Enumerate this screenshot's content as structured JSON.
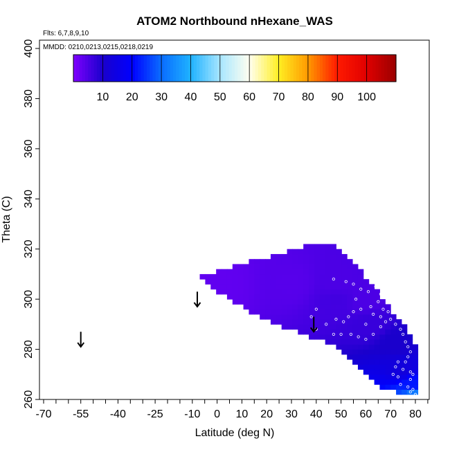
{
  "chart_data": {
    "type": "heatmap",
    "title": "ATOM2 Northbound nHexane_WAS",
    "flights_note": "Flts: 6,7,8,9,10",
    "dates_note": "MMDD: 0210,0213,0215,0218,0219",
    "xlabel": "Latitude (deg N)",
    "ylabel": "Theta (C)",
    "xlim": [
      -70,
      85
    ],
    "ylim": [
      260,
      400
    ],
    "x_ticks": [
      -70,
      -55,
      -40,
      -25,
      -10,
      0,
      10,
      20,
      30,
      40,
      50,
      60,
      70,
      80
    ],
    "y_ticks": [
      260,
      280,
      300,
      320,
      340,
      360,
      380,
      400
    ],
    "colorbar": {
      "range": [
        0,
        110
      ],
      "ticks": [
        10,
        20,
        30,
        40,
        50,
        60,
        70,
        80,
        90,
        100
      ],
      "stops": [
        {
          "value": 0,
          "color": "#7f00ff"
        },
        {
          "value": 10,
          "color": "#1a00cc"
        },
        {
          "value": 20,
          "color": "#0000ff"
        },
        {
          "value": 30,
          "color": "#0a6dff"
        },
        {
          "value": 40,
          "color": "#1fb2ff"
        },
        {
          "value": 50,
          "color": "#a8e6ff"
        },
        {
          "value": 60,
          "color": "#fffff0"
        },
        {
          "value": 70,
          "color": "#ffee22"
        },
        {
          "value": 80,
          "color": "#ff9900"
        },
        {
          "value": 90,
          "color": "#ff1a00"
        },
        {
          "value": 100,
          "color": "#e00000"
        },
        {
          "value": 110,
          "color": "#990000"
        }
      ]
    },
    "field_region": {
      "top_boundary": [
        [
          -7,
          309
        ],
        [
          10,
          314
        ],
        [
          25,
          318
        ],
        [
          38,
          322
        ],
        [
          48,
          322
        ],
        [
          52,
          317
        ],
        [
          57,
          312
        ],
        [
          62,
          307
        ],
        [
          66,
          302
        ],
        [
          70,
          296
        ],
        [
          74,
          291
        ],
        [
          78,
          286
        ],
        [
          80,
          282
        ],
        [
          81,
          278
        ],
        [
          81,
          263
        ]
      ],
      "bottom_boundary": [
        [
          -7,
          309
        ],
        [
          0,
          303
        ],
        [
          8,
          298
        ],
        [
          18,
          292
        ],
        [
          30,
          288
        ],
        [
          40,
          284
        ],
        [
          48,
          282
        ],
        [
          52,
          278
        ],
        [
          56,
          274
        ],
        [
          60,
          270
        ],
        [
          64,
          266
        ],
        [
          68,
          264
        ],
        [
          72,
          263
        ],
        [
          81,
          263
        ]
      ],
      "values": [
        {
          "lat": 0,
          "theta": 306,
          "v": 3
        },
        {
          "lat": 30,
          "theta": 306,
          "v": 4
        },
        {
          "lat": 48,
          "theta": 306,
          "v": 5
        },
        {
          "lat": 48,
          "theta": 300,
          "v": 6
        },
        {
          "lat": 60,
          "theta": 300,
          "v": 5
        },
        {
          "lat": 62,
          "theta": 290,
          "v": 7
        },
        {
          "lat": 72,
          "theta": 283,
          "v": 10
        },
        {
          "lat": 75,
          "theta": 272,
          "v": 13
        },
        {
          "lat": 79,
          "theta": 266,
          "v": 22
        },
        {
          "lat": 80,
          "theta": 262,
          "v": 32
        }
      ]
    },
    "sample_points": [
      [
        47,
        308
      ],
      [
        52,
        307
      ],
      [
        55,
        306
      ],
      [
        58,
        304
      ],
      [
        61,
        303
      ],
      [
        64,
        305
      ],
      [
        66,
        302
      ],
      [
        65,
        299
      ],
      [
        62,
        297
      ],
      [
        58,
        296
      ],
      [
        55,
        295
      ],
      [
        53,
        293
      ],
      [
        51,
        291
      ],
      [
        48,
        292
      ],
      [
        44,
        290
      ],
      [
        40,
        296
      ],
      [
        38,
        293
      ],
      [
        40,
        288
      ],
      [
        47,
        286
      ],
      [
        50,
        286
      ],
      [
        54,
        286
      ],
      [
        57,
        285
      ],
      [
        60,
        284
      ],
      [
        63,
        286
      ],
      [
        66,
        289
      ],
      [
        68,
        291
      ],
      [
        66,
        293
      ],
      [
        69,
        295
      ],
      [
        70,
        292
      ],
      [
        72,
        290
      ],
      [
        74,
        288
      ],
      [
        75,
        286
      ],
      [
        76,
        283
      ],
      [
        77,
        281
      ],
      [
        78,
        279
      ],
      [
        77,
        277
      ],
      [
        76,
        275
      ],
      [
        73,
        275
      ],
      [
        72,
        273
      ],
      [
        75,
        272
      ],
      [
        78,
        271
      ],
      [
        79,
        270
      ],
      [
        78,
        268
      ],
      [
        73,
        269
      ],
      [
        71,
        270
      ],
      [
        74,
        266
      ],
      [
        77,
        265
      ],
      [
        79,
        264
      ],
      [
        80,
        262
      ],
      [
        78,
        263
      ],
      [
        67,
        296
      ],
      [
        70,
        300
      ],
      [
        63,
        294
      ],
      [
        56,
        300
      ],
      [
        60,
        290
      ]
    ],
    "arrows": [
      {
        "lat": -55,
        "theta_top": 287,
        "theta_bottom": 281
      },
      {
        "lat": -8,
        "theta_top": 303,
        "theta_bottom": 297
      },
      {
        "lat": 39,
        "theta_top": 293,
        "theta_bottom": 287
      }
    ]
  }
}
